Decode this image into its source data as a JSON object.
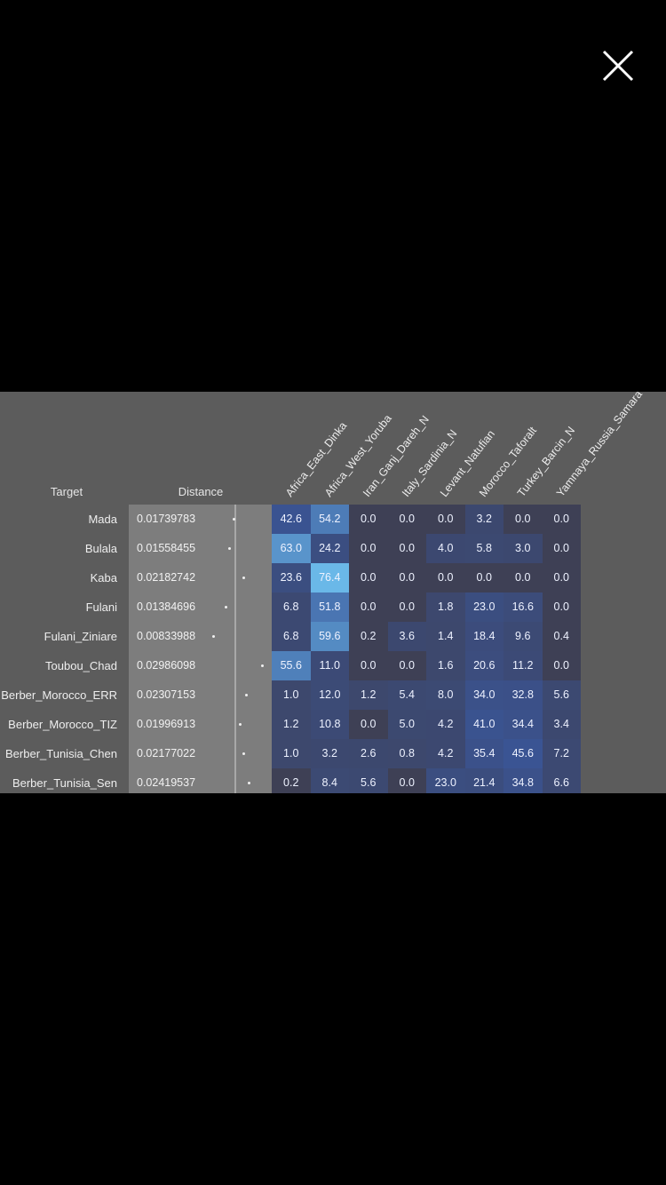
{
  "viewer": {
    "close_icon": "close-icon"
  },
  "figure": {
    "headers": {
      "target": "Target",
      "distance": "Distance"
    },
    "columns": [
      "Africa_East_Dinka",
      "Africa_West_Yoruba",
      "Iran_Ganj_Dareh_N",
      "Italy_Sardinia_N",
      "Levant_Natufian",
      "Morocco_Taforalt",
      "Turkey_Barcin_N",
      "Yamnaya_Russia_Samara"
    ],
    "rows": [
      {
        "target": "Mada",
        "distance": "0.01739783",
        "distance_value": 0.01739783,
        "values": [
          "42.6",
          "54.2",
          "0.0",
          "0.0",
          "0.0",
          "3.2",
          "0.0",
          "0.0"
        ]
      },
      {
        "target": "Bulala",
        "distance": "0.01558455",
        "distance_value": 0.01558455,
        "values": [
          "63.0",
          "24.2",
          "0.0",
          "0.0",
          "4.0",
          "5.8",
          "3.0",
          "0.0"
        ]
      },
      {
        "target": "Kaba",
        "distance": "0.02182742",
        "distance_value": 0.02182742,
        "values": [
          "23.6",
          "76.4",
          "0.0",
          "0.0",
          "0.0",
          "0.0",
          "0.0",
          "0.0"
        ]
      },
      {
        "target": "Fulani",
        "distance": "0.01384696",
        "distance_value": 0.01384696,
        "values": [
          "6.8",
          "51.8",
          "0.0",
          "0.0",
          "1.8",
          "23.0",
          "16.6",
          "0.0"
        ]
      },
      {
        "target": "Fulani_Ziniare",
        "distance": "0.00833988",
        "distance_value": 0.00833988,
        "values": [
          "6.8",
          "59.6",
          "0.2",
          "3.6",
          "1.4",
          "18.4",
          "9.6",
          "0.4"
        ]
      },
      {
        "target": "Toubou_Chad",
        "distance": "0.02986098",
        "distance_value": 0.02986098,
        "values": [
          "55.6",
          "11.0",
          "0.0",
          "0.0",
          "1.6",
          "20.6",
          "11.2",
          "0.0"
        ]
      },
      {
        "target": "Berber_Morocco_ERR",
        "distance": "0.02307153",
        "distance_value": 0.02307153,
        "values": [
          "1.0",
          "12.0",
          "1.2",
          "5.4",
          "8.0",
          "34.0",
          "32.8",
          "5.6"
        ]
      },
      {
        "target": "Berber_Morocco_TIZ",
        "distance": "0.01996913",
        "distance_value": 0.01996913,
        "values": [
          "1.2",
          "10.8",
          "0.0",
          "5.0",
          "4.2",
          "41.0",
          "34.4",
          "3.4"
        ]
      },
      {
        "target": "Berber_Tunisia_Chen",
        "distance": "0.02177022",
        "distance_value": 0.02177022,
        "values": [
          "1.0",
          "3.2",
          "2.6",
          "0.8",
          "4.2",
          "35.4",
          "45.6",
          "7.2"
        ]
      },
      {
        "target": "Berber_Tunisia_Sen",
        "distance": "0.02419537",
        "distance_value": 0.02419537,
        "values": [
          "0.2",
          "8.4",
          "5.6",
          "0.0",
          "23.0",
          "21.4",
          "34.8",
          "6.6"
        ]
      }
    ],
    "colors": {
      "panel": "#5c5c5c",
      "distance_band": "#7d7d7d",
      "cell_low": "#3e4055",
      "cell_mid": "#3a5597",
      "cell_high": "#6ab8e8"
    }
  }
}
